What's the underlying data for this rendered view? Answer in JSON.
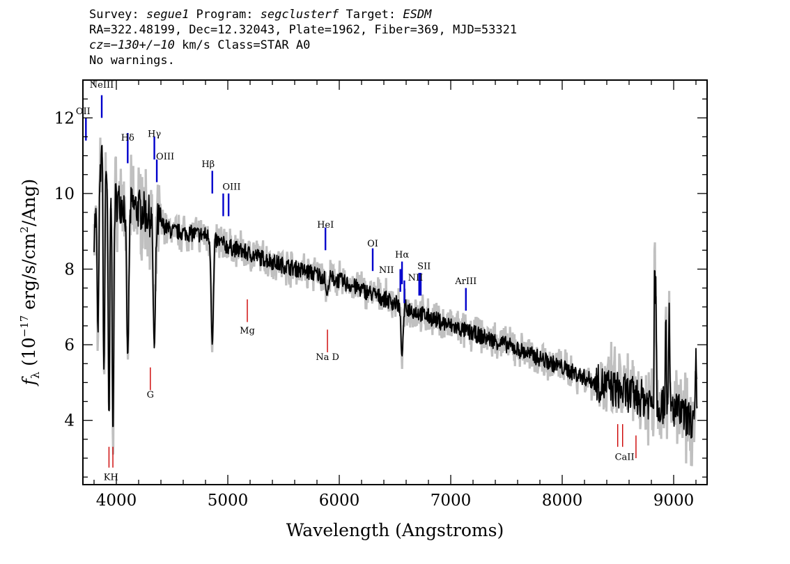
{
  "header": {
    "line1": {
      "p1": "Survey: ",
      "survey": "segue1",
      "p2": " Program: ",
      "program": "segclusterf",
      "p3": " Target: ",
      "target": "ESDM"
    },
    "line2": "RA=322.48199, Dec=12.32043, Plate=1962, Fiber=369, MJD=53321",
    "line3": {
      "cz_prefix": "cz=",
      "cz_value": "−130+/−10",
      "rest": " km/s Class=STAR A0"
    },
    "line4": "No warnings."
  },
  "chart_data": {
    "type": "line",
    "title": "",
    "xlabel": "Wavelength (Angstroms)",
    "ylabel": "fλ (10⁻¹⁷ erg/s/cm²/Ang)",
    "xlim": [
      3700,
      9300
    ],
    "ylim": [
      2.3,
      13.0
    ],
    "xticks": [
      4000,
      5000,
      6000,
      7000,
      8000,
      9000
    ],
    "yticks": [
      4,
      6,
      8,
      10,
      12
    ],
    "grid": false,
    "colors": {
      "flux": "#000000",
      "error": "#c0c0c0",
      "emission": "#0000cc",
      "absorption": "#cc0000"
    },
    "flux_anchors": [
      {
        "x": 3800,
        "y": 9.0
      },
      {
        "x": 3850,
        "y": 10.3
      },
      {
        "x": 3900,
        "y": 10.8
      },
      {
        "x": 4000,
        "y": 9.8
      },
      {
        "x": 4200,
        "y": 9.6
      },
      {
        "x": 4500,
        "y": 9.0
      },
      {
        "x": 4800,
        "y": 8.9
      },
      {
        "x": 5000,
        "y": 8.6
      },
      {
        "x": 5500,
        "y": 8.1
      },
      {
        "x": 6000,
        "y": 7.7
      },
      {
        "x": 6500,
        "y": 7.1
      },
      {
        "x": 7000,
        "y": 6.5
      },
      {
        "x": 7500,
        "y": 6.0
      },
      {
        "x": 8000,
        "y": 5.4
      },
      {
        "x": 8300,
        "y": 5.0
      },
      {
        "x": 8600,
        "y": 4.7
      },
      {
        "x": 9000,
        "y": 4.3
      },
      {
        "x": 9200,
        "y": 3.9
      }
    ],
    "flux_dips": [
      {
        "x": 3835,
        "y": 6.3
      },
      {
        "x": 3889,
        "y": 5.3
      },
      {
        "x": 3934,
        "y": 4.0
      },
      {
        "x": 3970,
        "y": 3.6
      },
      {
        "x": 4102,
        "y": 5.7
      },
      {
        "x": 4341,
        "y": 5.9
      },
      {
        "x": 4861,
        "y": 6.0
      },
      {
        "x": 5890,
        "y": 7.3
      },
      {
        "x": 6563,
        "y": 5.7
      }
    ],
    "flux_spikes": [
      {
        "x": 3870,
        "y": 11.4
      },
      {
        "x": 8830,
        "y": 8.4
      },
      {
        "x": 8840,
        "y": 7.8
      },
      {
        "x": 8930,
        "y": 6.9
      },
      {
        "x": 8960,
        "y": 7.1
      },
      {
        "x": 9200,
        "y": 5.9
      }
    ],
    "emission_lines": [
      {
        "label": "OII",
        "x": 3727,
        "y1": 11.4,
        "y2": 12.0,
        "label_y": 12.1
      },
      {
        "label": "NeIII",
        "x": 3869,
        "y1": 12.0,
        "y2": 12.6,
        "label_y": 12.8
      },
      {
        "label": "Hδ",
        "x": 4102,
        "y1": 10.8,
        "y2": 11.6,
        "label_y": 11.4
      },
      {
        "label": "Hγ",
        "x": 4341,
        "y1": 10.9,
        "y2": 11.5,
        "label_y": 11.5
      },
      {
        "label": "OIII",
        "x": 4363,
        "y1": 10.3,
        "y2": 10.9,
        "label_y": 10.9
      },
      {
        "label": "Hβ",
        "x": 4861,
        "y1": 10.0,
        "y2": 10.6,
        "label_y": 10.7
      },
      {
        "label": "OIII",
        "x": 4959,
        "y1": 9.4,
        "y2": 10.0,
        "label_y": 10.1
      },
      {
        "label": "OIII",
        "x": 5007,
        "y1": 9.4,
        "y2": 10.0,
        "label_y": 10.1
      },
      {
        "label": "HeI",
        "x": 5876,
        "y1": 8.5,
        "y2": 9.1,
        "label_y": 9.1
      },
      {
        "label": "OI",
        "x": 6300,
        "y1": 7.95,
        "y2": 8.55,
        "label_y": 8.6
      },
      {
        "label": "NII",
        "x": 6548,
        "y1": 7.4,
        "y2": 8.0,
        "label_y": 7.9
      },
      {
        "label": "Hα",
        "x": 6563,
        "y1": 7.6,
        "y2": 8.2,
        "label_y": 8.3
      },
      {
        "label": "NII",
        "x": 6584,
        "y1": 7.1,
        "y2": 7.7,
        "label_y": 7.7
      },
      {
        "label": "SII",
        "x": 6717,
        "y1": 7.3,
        "y2": 7.9,
        "label_y": 8.0
      },
      {
        "label": "SII",
        "x": 6731,
        "y1": 7.3,
        "y2": 7.9,
        "label_y": 8.0
      },
      {
        "label": "ArIII",
        "x": 7136,
        "y1": 6.9,
        "y2": 7.5,
        "label_y": 7.6
      }
    ],
    "absorption_lines": [
      {
        "label": "K",
        "x": 3934,
        "y1": 2.75,
        "y2": 3.3,
        "label_y": 2.5
      },
      {
        "label": "H",
        "x": 3969,
        "y1": 2.75,
        "y2": 3.3,
        "label_y": 2.5
      },
      {
        "label": "G",
        "x": 4305,
        "y1": 4.8,
        "y2": 5.4,
        "label_y": 4.6
      },
      {
        "label": "Mg",
        "x": 5175,
        "y1": 6.6,
        "y2": 7.2,
        "label_y": 6.3
      },
      {
        "label": "Na D",
        "x": 5894,
        "y1": 5.8,
        "y2": 6.4,
        "label_y": 5.6
      },
      {
        "label": "CaII",
        "x": 8498,
        "y1": 3.3,
        "y2": 3.9,
        "label_y": 3.0
      },
      {
        "label": "CaII",
        "x": 8542,
        "y1": 3.3,
        "y2": 3.9,
        "label_y": 3.0
      },
      {
        "label": "CaII",
        "x": 8662,
        "y1": 3.0,
        "y2": 3.6,
        "label_y": 3.0
      }
    ],
    "text_labels": {
      "KH": "KH",
      "CaII": "CaII",
      "SII": "SII",
      "NII_a": "NII",
      "NII_b": "NII",
      "OIII_a": "OIII",
      "OIII_b": "OIII"
    }
  }
}
